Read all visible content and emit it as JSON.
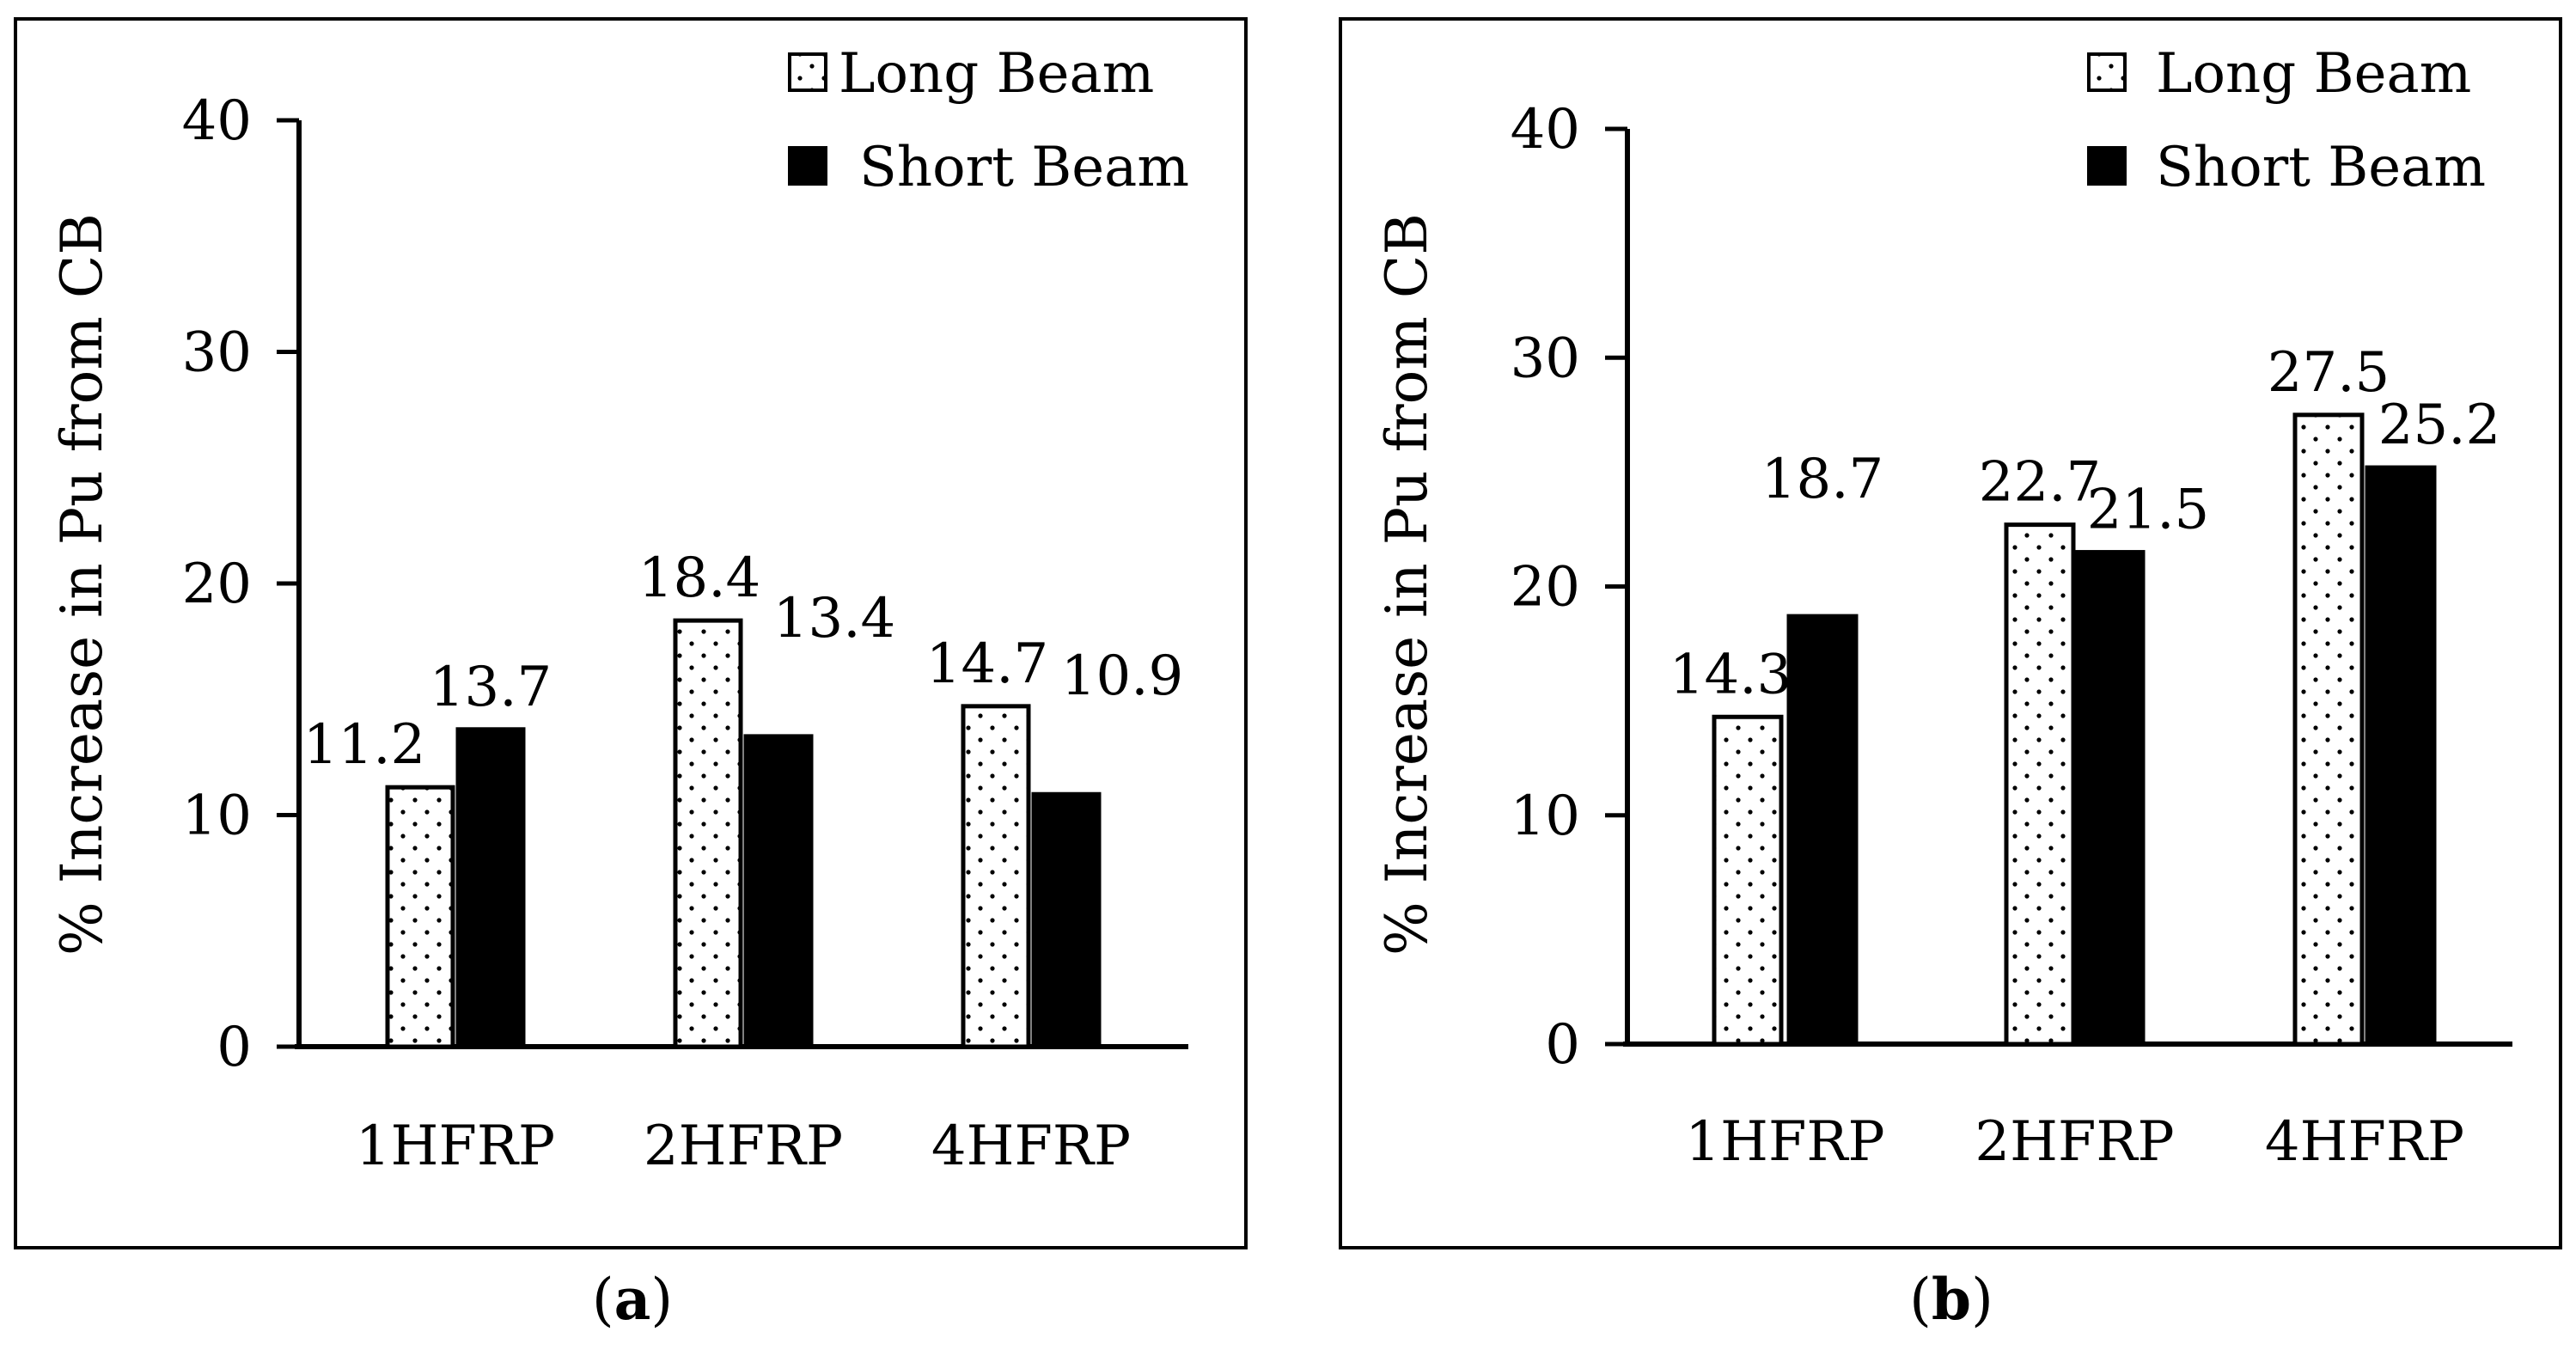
{
  "panel_labels": [
    "a",
    "b"
  ],
  "chart_data": [
    {
      "panel": "a",
      "type": "bar",
      "title": "",
      "xlabel": "",
      "ylabel": "% Increase in Pu from CB",
      "ylim": [
        0,
        40
      ],
      "yticks": [
        0,
        10,
        20,
        30,
        40
      ],
      "grid": false,
      "legend_position": "top-right",
      "categories": [
        "1HFRP",
        "2HFRP",
        "4HFRP"
      ],
      "series": [
        {
          "name": "Long Beam",
          "fill": "dotted",
          "values": [
            11.2,
            18.4,
            14.7
          ],
          "labels": [
            "11.2",
            "18.4",
            "14.7"
          ]
        },
        {
          "name": "Short Beam",
          "fill": "solid",
          "values": [
            13.7,
            13.4,
            10.9
          ],
          "labels": [
            "13.7",
            "13.4",
            "10.9"
          ]
        }
      ]
    },
    {
      "panel": "b",
      "type": "bar",
      "title": "",
      "xlabel": "",
      "ylabel": "% Increase in Pu from CB",
      "ylim": [
        0,
        40
      ],
      "yticks": [
        0,
        10,
        20,
        30,
        40
      ],
      "grid": false,
      "legend_position": "top-right",
      "categories": [
        "1HFRP",
        "2HFRP",
        "4HFRP"
      ],
      "series": [
        {
          "name": "Long Beam",
          "fill": "dotted",
          "values": [
            14.3,
            22.7,
            27.5
          ],
          "labels": [
            "14.3",
            "22.7",
            "27.5"
          ]
        },
        {
          "name": "Short Beam",
          "fill": "solid",
          "values": [
            18.7,
            21.5,
            25.2
          ],
          "labels": [
            "18.7",
            "21.5",
            "25.2"
          ]
        }
      ]
    }
  ],
  "colors": {
    "ink": "#000000",
    "paper": "#ffffff"
  }
}
